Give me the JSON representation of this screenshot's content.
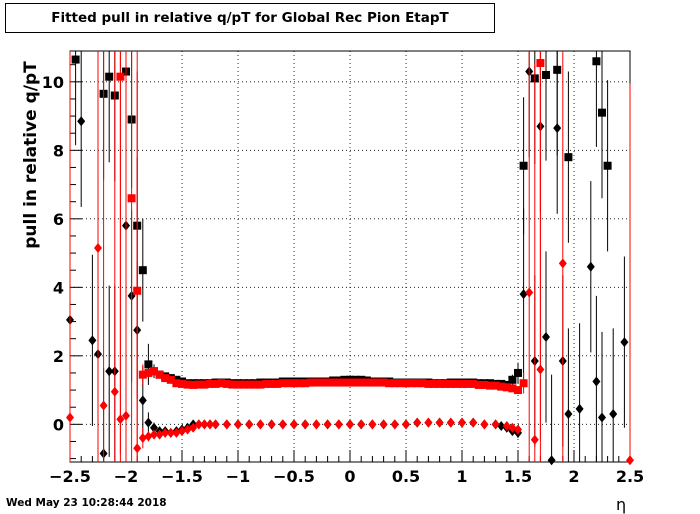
{
  "header": {
    "title": "Fitted pull in relative q/pT for Global Rec Pion EtapT"
  },
  "footer": {
    "timestamp": "Wed May 23 10:28:44 2018"
  },
  "chart_data": {
    "type": "scatter",
    "title": "Fitted pull in relative q/pT for Global Rec Pion EtapT",
    "xlabel": "η",
    "ylabel": "pull in relative q/pT",
    "xlim": [
      -2.5,
      2.5
    ],
    "ylim": [
      -1.1,
      10.9
    ],
    "grid": true,
    "x_ticks": [
      -2.5,
      -2,
      -1.5,
      -1,
      -0.5,
      0,
      0.5,
      1,
      1.5,
      2,
      2.5
    ],
    "x_tick_labels": [
      "−2.5",
      "−2",
      "−1.5",
      "−1",
      "−0.5",
      "0",
      "0.5",
      "1",
      "1.5",
      "2",
      "2.5"
    ],
    "y_ticks": [
      0,
      2,
      4,
      6,
      8,
      10
    ],
    "y_tick_labels": [
      "0",
      "2",
      "4",
      "6",
      "8",
      "10"
    ],
    "series": [
      {
        "color": "#000000",
        "marker": "square",
        "x": [
          -2.45,
          -2.2,
          -2.15,
          -2.1,
          -2.0,
          -1.95,
          -1.9,
          -1.85,
          -1.8,
          -1.75,
          -1.7,
          -1.65,
          -1.6,
          -1.55,
          -1.5,
          -1.45,
          -1.4,
          -1.35,
          -1.3,
          -1.25,
          -1.2,
          -1.15,
          -1.1,
          -1.05,
          -1.0,
          -0.95,
          -0.9,
          -0.85,
          -0.8,
          -0.75,
          -0.7,
          -0.65,
          -0.6,
          -0.55,
          -0.5,
          -0.45,
          -0.4,
          -0.35,
          -0.3,
          -0.25,
          -0.2,
          -0.15,
          -0.1,
          -0.05,
          0.0,
          0.05,
          0.1,
          0.15,
          0.2,
          0.25,
          0.3,
          0.35,
          0.4,
          0.45,
          0.5,
          0.55,
          0.6,
          0.65,
          0.7,
          0.75,
          0.8,
          0.85,
          0.9,
          0.95,
          1.0,
          1.05,
          1.1,
          1.15,
          1.2,
          1.25,
          1.3,
          1.35,
          1.4,
          1.45,
          1.5,
          1.55,
          1.65,
          1.75,
          1.85,
          1.95,
          2.2,
          2.25,
          2.3
        ],
        "y": [
          10.65,
          9.65,
          10.15,
          9.6,
          10.3,
          8.9,
          5.8,
          4.5,
          1.75,
          1.55,
          1.45,
          1.4,
          1.35,
          1.3,
          1.25,
          1.2,
          1.2,
          1.2,
          1.2,
          1.2,
          1.22,
          1.22,
          1.22,
          1.2,
          1.2,
          1.2,
          1.2,
          1.2,
          1.22,
          1.22,
          1.22,
          1.22,
          1.25,
          1.25,
          1.25,
          1.25,
          1.25,
          1.25,
          1.25,
          1.25,
          1.25,
          1.28,
          1.28,
          1.3,
          1.3,
          1.3,
          1.3,
          1.28,
          1.25,
          1.25,
          1.25,
          1.25,
          1.22,
          1.22,
          1.22,
          1.22,
          1.22,
          1.22,
          1.22,
          1.2,
          1.2,
          1.2,
          1.22,
          1.22,
          1.22,
          1.22,
          1.22,
          1.2,
          1.2,
          1.2,
          1.18,
          1.18,
          1.15,
          1.3,
          1.5,
          7.55,
          10.1,
          10.2,
          10.35,
          7.8,
          10.6,
          9.1,
          7.55
        ],
        "yerr": [
          2.5,
          2.5,
          2.5,
          2.5,
          2.5,
          2.0,
          2.0,
          1.5,
          0.6,
          0.2,
          0.1,
          0.1,
          0.08,
          0.08,
          0.08,
          0.08,
          0.08,
          0.08,
          0.08,
          0.08,
          0.08,
          0.08,
          0.08,
          0.08,
          0.08,
          0.08,
          0.08,
          0.08,
          0.08,
          0.08,
          0.08,
          0.08,
          0.08,
          0.08,
          0.08,
          0.08,
          0.08,
          0.08,
          0.08,
          0.08,
          0.08,
          0.08,
          0.08,
          0.08,
          0.08,
          0.08,
          0.08,
          0.08,
          0.08,
          0.08,
          0.08,
          0.08,
          0.08,
          0.08,
          0.08,
          0.08,
          0.08,
          0.08,
          0.08,
          0.08,
          0.08,
          0.08,
          0.08,
          0.08,
          0.08,
          0.08,
          0.08,
          0.08,
          0.08,
          0.08,
          0.08,
          0.08,
          0.08,
          0.15,
          0.3,
          2.0,
          2.5,
          2.5,
          2.5,
          2.5,
          2.5,
          2.5,
          2.5
        ]
      },
      {
        "color": "#000000",
        "marker": "diamond",
        "x": [
          -2.5,
          -2.4,
          -2.3,
          -2.25,
          -2.2,
          -2.15,
          -2.1,
          -2.0,
          -1.95,
          -1.9,
          -1.85,
          -1.8,
          -1.75,
          -1.7,
          -1.65,
          -1.6,
          -1.55,
          -1.5,
          -1.45,
          -1.4,
          -1.35,
          -1.3,
          -1.25,
          -1.2,
          -1.1,
          -1.0,
          -0.9,
          -0.8,
          -0.7,
          -0.6,
          -0.5,
          -0.4,
          -0.3,
          -0.2,
          -0.1,
          0.0,
          0.1,
          0.2,
          0.3,
          0.4,
          0.5,
          0.6,
          0.7,
          0.8,
          0.9,
          1.0,
          1.1,
          1.2,
          1.3,
          1.35,
          1.4,
          1.45,
          1.5,
          1.55,
          1.6,
          1.65,
          1.7,
          1.75,
          1.8,
          1.85,
          1.9,
          1.95,
          2.05,
          2.15,
          2.2,
          2.25,
          2.35,
          2.45
        ],
        "y": [
          3.05,
          8.85,
          2.45,
          2.05,
          -0.85,
          1.55,
          1.55,
          5.8,
          3.75,
          2.75,
          0.7,
          0.05,
          -0.1,
          -0.2,
          -0.2,
          -0.25,
          -0.2,
          -0.15,
          -0.1,
          0.0,
          0.0,
          0.0,
          0.0,
          0.0,
          0.0,
          0.0,
          0.0,
          0.0,
          0.0,
          0.0,
          0.0,
          0.0,
          0.0,
          0.0,
          0.0,
          0.0,
          0.0,
          0.0,
          0.0,
          0.0,
          0.0,
          0.05,
          0.05,
          0.05,
          0.05,
          0.05,
          0.05,
          0.0,
          0.0,
          -0.05,
          -0.1,
          -0.2,
          -0.25,
          3.8,
          10.3,
          1.85,
          8.7,
          2.55,
          -1.05,
          8.65,
          1.85,
          0.3,
          0.45,
          4.6,
          1.25,
          0.2,
          0.3,
          2.4
        ],
        "yerr": [
          2.5,
          2.5,
          2.5,
          2.5,
          2.5,
          2.5,
          2.5,
          2.5,
          2.5,
          2.0,
          1.0,
          0.3,
          0.15,
          0.1,
          0.08,
          0.06,
          0.05,
          0.05,
          0.05,
          0.04,
          0.04,
          0.04,
          0.04,
          0.04,
          0.04,
          0.04,
          0.04,
          0.04,
          0.04,
          0.04,
          0.04,
          0.04,
          0.04,
          0.04,
          0.04,
          0.04,
          0.04,
          0.04,
          0.04,
          0.04,
          0.04,
          0.04,
          0.04,
          0.04,
          0.04,
          0.04,
          0.04,
          0.04,
          0.04,
          0.05,
          0.05,
          0.08,
          0.15,
          2.5,
          2.5,
          2.5,
          2.5,
          2.5,
          2.5,
          2.5,
          2.5,
          2.5,
          2.5,
          2.5,
          2.5,
          2.5,
          2.5,
          2.5
        ]
      },
      {
        "color": "#ff0000",
        "marker": "square",
        "x": [
          -2.05,
          -1.95,
          -1.9,
          -1.85,
          -1.8,
          -1.75,
          -1.7,
          -1.65,
          -1.6,
          -1.55,
          -1.5,
          -1.45,
          -1.4,
          -1.35,
          -1.3,
          -1.25,
          -1.2,
          -1.15,
          -1.1,
          -1.05,
          -1.0,
          -0.95,
          -0.9,
          -0.85,
          -0.8,
          -0.75,
          -0.7,
          -0.65,
          -0.6,
          -0.55,
          -0.5,
          -0.45,
          -0.4,
          -0.35,
          -0.3,
          -0.25,
          -0.2,
          -0.15,
          -0.1,
          -0.05,
          0.0,
          0.05,
          0.1,
          0.15,
          0.2,
          0.25,
          0.3,
          0.35,
          0.4,
          0.45,
          0.5,
          0.55,
          0.6,
          0.65,
          0.7,
          0.75,
          0.8,
          0.85,
          0.9,
          0.95,
          1.0,
          1.05,
          1.1,
          1.15,
          1.2,
          1.25,
          1.3,
          1.35,
          1.4,
          1.45,
          1.5,
          1.55,
          1.7
        ],
        "y": [
          10.15,
          6.6,
          3.9,
          1.45,
          1.5,
          1.55,
          1.45,
          1.35,
          1.3,
          1.2,
          1.18,
          1.16,
          1.15,
          1.16,
          1.16,
          1.18,
          1.18,
          1.2,
          1.18,
          1.16,
          1.16,
          1.16,
          1.16,
          1.16,
          1.16,
          1.18,
          1.18,
          1.18,
          1.2,
          1.2,
          1.2,
          1.2,
          1.2,
          1.22,
          1.22,
          1.22,
          1.22,
          1.22,
          1.22,
          1.22,
          1.22,
          1.22,
          1.22,
          1.22,
          1.22,
          1.22,
          1.22,
          1.2,
          1.2,
          1.2,
          1.2,
          1.2,
          1.2,
          1.2,
          1.18,
          1.18,
          1.18,
          1.18,
          1.18,
          1.18,
          1.18,
          1.18,
          1.18,
          1.15,
          1.15,
          1.13,
          1.13,
          1.1,
          1.08,
          1.05,
          1.0,
          1.2,
          10.55
        ],
        "yerr": [
          11.0,
          11.0,
          11.0,
          0.3,
          0.1,
          0.1,
          0.08,
          0.07,
          0.07,
          0.06,
          0.06,
          0.06,
          0.06,
          0.06,
          0.06,
          0.06,
          0.06,
          0.06,
          0.06,
          0.06,
          0.06,
          0.06,
          0.06,
          0.06,
          0.06,
          0.06,
          0.06,
          0.06,
          0.06,
          0.06,
          0.06,
          0.06,
          0.06,
          0.06,
          0.06,
          0.06,
          0.06,
          0.06,
          0.06,
          0.06,
          0.06,
          0.06,
          0.06,
          0.06,
          0.06,
          0.06,
          0.06,
          0.06,
          0.06,
          0.06,
          0.06,
          0.06,
          0.06,
          0.06,
          0.06,
          0.06,
          0.06,
          0.06,
          0.06,
          0.06,
          0.06,
          0.06,
          0.06,
          0.06,
          0.06,
          0.06,
          0.06,
          0.06,
          0.06,
          0.08,
          0.1,
          0.3,
          11.0
        ]
      },
      {
        "color": "#ff0000",
        "marker": "diamond",
        "x": [
          -2.5,
          -2.25,
          -2.2,
          -2.1,
          -2.05,
          -2.0,
          -1.9,
          -1.85,
          -1.8,
          -1.75,
          -1.7,
          -1.65,
          -1.6,
          -1.55,
          -1.5,
          -1.45,
          -1.4,
          -1.35,
          -1.3,
          -1.25,
          -1.2,
          -1.1,
          -1.0,
          -0.9,
          -0.8,
          -0.7,
          -0.6,
          -0.5,
          -0.4,
          -0.3,
          -0.2,
          -0.1,
          0.0,
          0.1,
          0.2,
          0.3,
          0.4,
          0.5,
          0.6,
          0.7,
          0.8,
          0.9,
          1.0,
          1.1,
          1.2,
          1.3,
          1.4,
          1.45,
          1.5,
          1.6,
          1.65,
          1.7,
          1.9,
          2.5
        ],
        "y": [
          0.2,
          5.15,
          0.55,
          0.95,
          0.15,
          0.25,
          -0.7,
          -0.4,
          -0.35,
          -0.3,
          -0.3,
          -0.25,
          -0.25,
          -0.25,
          -0.2,
          -0.15,
          -0.1,
          0.0,
          0.0,
          0.0,
          0.0,
          0.0,
          0.0,
          0.0,
          0.0,
          0.0,
          0.0,
          0.0,
          0.0,
          0.0,
          0.0,
          0.0,
          0.0,
          0.0,
          0.0,
          0.0,
          0.0,
          0.0,
          0.05,
          0.05,
          0.05,
          0.05,
          0.05,
          0.05,
          0.0,
          0.0,
          -0.05,
          -0.1,
          -0.15,
          3.85,
          -0.45,
          1.6,
          4.7,
          -1.05
        ],
        "yerr": [
          11.0,
          11.0,
          11.0,
          11.0,
          11.0,
          11.0,
          11.0,
          0.3,
          0.15,
          0.1,
          0.08,
          0.07,
          0.06,
          0.05,
          0.05,
          0.05,
          0.04,
          0.04,
          0.04,
          0.04,
          0.04,
          0.04,
          0.04,
          0.04,
          0.04,
          0.04,
          0.04,
          0.04,
          0.04,
          0.04,
          0.04,
          0.04,
          0.04,
          0.04,
          0.04,
          0.04,
          0.04,
          0.04,
          0.04,
          0.04,
          0.04,
          0.04,
          0.04,
          0.04,
          0.04,
          0.04,
          0.05,
          0.08,
          0.12,
          11.0,
          11.0,
          11.0,
          11.0,
          11.0
        ]
      }
    ]
  }
}
